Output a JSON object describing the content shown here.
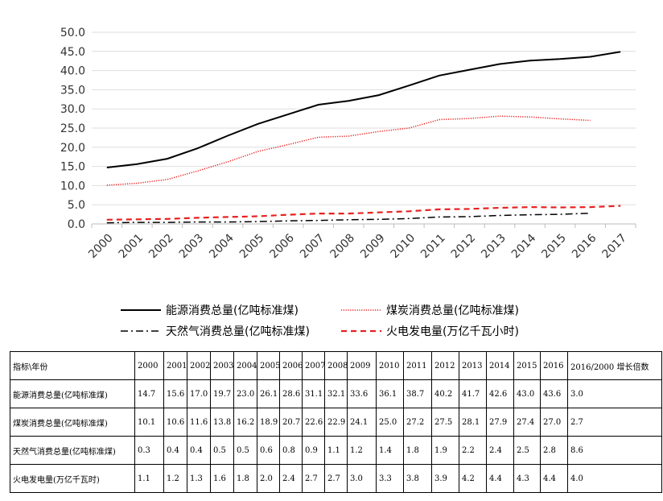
{
  "chart_data": {
    "type": "line",
    "x": [
      "2000",
      "2001",
      "2002",
      "2003",
      "2004",
      "2005",
      "2006",
      "2007",
      "2008",
      "2009",
      "2010",
      "2011",
      "2012",
      "2013",
      "2014",
      "2015",
      "2016",
      "2017"
    ],
    "ylim": [
      0,
      50
    ],
    "yticks": [
      "0.0",
      "5.0",
      "10.0",
      "15.0",
      "20.0",
      "25.0",
      "30.0",
      "35.0",
      "40.0",
      "45.0",
      "50.0"
    ],
    "grid": true,
    "legend_position": "bottom",
    "series": [
      {
        "name": "能源消费总量(亿吨标准煤)",
        "color": "#000000",
        "style": "solid",
        "values": [
          14.7,
          15.6,
          17.0,
          19.7,
          23.0,
          26.1,
          28.6,
          31.1,
          32.1,
          33.6,
          36.1,
          38.7,
          40.2,
          41.7,
          42.6,
          43.0,
          43.6,
          44.9
        ]
      },
      {
        "name": "煤炭消费总量(亿吨标准煤)",
        "color": "#e8201f",
        "style": "dotted",
        "values": [
          10.1,
          10.6,
          11.6,
          13.8,
          16.2,
          18.9,
          20.7,
          22.6,
          22.9,
          24.1,
          25.0,
          27.2,
          27.5,
          28.1,
          27.9,
          27.4,
          27.0,
          null
        ]
      },
      {
        "name": "天然气消费总量(亿吨标准煤)",
        "color": "#000000",
        "style": "dashdot",
        "values": [
          0.3,
          0.4,
          0.4,
          0.5,
          0.5,
          0.6,
          0.8,
          0.9,
          1.1,
          1.2,
          1.4,
          1.8,
          1.9,
          2.2,
          2.4,
          2.5,
          2.8,
          null
        ]
      },
      {
        "name": "火电发电量(万亿千瓦小时)",
        "color": "#e8201f",
        "style": "dashed",
        "values": [
          1.1,
          1.2,
          1.3,
          1.6,
          1.8,
          2.0,
          2.4,
          2.7,
          2.7,
          3.0,
          3.3,
          3.8,
          3.9,
          4.2,
          4.4,
          4.3,
          4.4,
          4.7
        ]
      }
    ]
  },
  "table": {
    "header": [
      "指标\\年份",
      "2000",
      "2001",
      "2002",
      "2003",
      "2004",
      "2005",
      "2006",
      "2007",
      "2008",
      "2009",
      "2010",
      "2011",
      "2012",
      "2013",
      "2014",
      "2015",
      "2016",
      "2016/2000 增长倍数"
    ],
    "rows": [
      [
        "能源消费总量(亿吨标准煤)",
        "14.7",
        "15.6",
        "17.0",
        "19.7",
        "23.0",
        "26.1",
        "28.6",
        "31.1",
        "32.1",
        "33.6",
        "36.1",
        "38.7",
        "40.2",
        "41.7",
        "42.6",
        "43.0",
        "43.6",
        "3.0"
      ],
      [
        "煤炭消费总量(亿吨标准煤)",
        "10.1",
        "10.6",
        "11.6",
        "13.8",
        "16.2",
        "18.9",
        "20.7",
        "22.6",
        "22.9",
        "24.1",
        "25.0",
        "27.2",
        "27.5",
        "28.1",
        "27.9",
        "27.4",
        "27.0",
        "2.7"
      ],
      [
        "天然气消费总量(亿吨标准煤)",
        "0.3",
        "0.4",
        "0.4",
        "0.5",
        "0.5",
        "0.6",
        "0.8",
        "0.9",
        "1.1",
        "1.2",
        "1.4",
        "1.8",
        "1.9",
        "2.2",
        "2.4",
        "2.5",
        "2.8",
        "8.6"
      ],
      [
        "火电发电量(万亿千瓦时)",
        "1.1",
        "1.2",
        "1.3",
        "1.6",
        "1.8",
        "2.0",
        "2.4",
        "2.7",
        "2.7",
        "3.0",
        "3.3",
        "3.8",
        "3.9",
        "4.2",
        "4.4",
        "4.3",
        "4.4",
        "4.0"
      ]
    ]
  }
}
